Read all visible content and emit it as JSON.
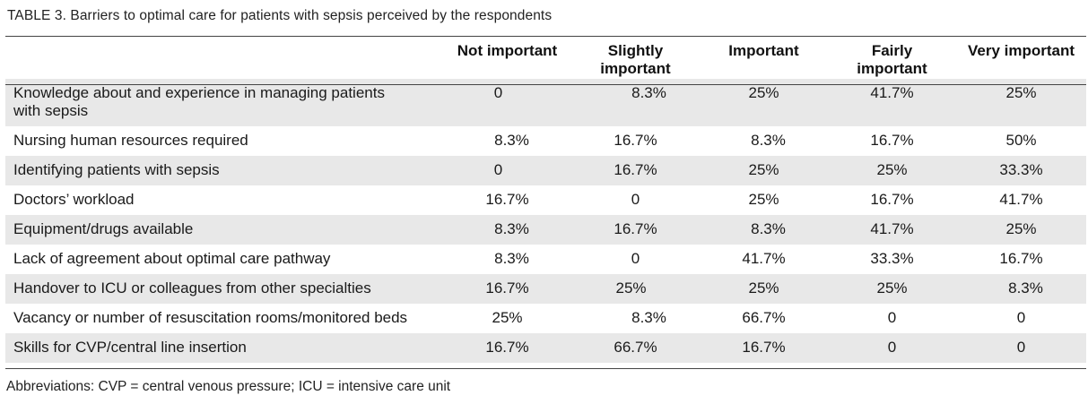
{
  "caption": "TABLE 3.  Barriers to optimal care for patients with sepsis perceived by the respondents",
  "headers": {
    "col1": "Not important",
    "col2_line1": "Slightly",
    "col2_line2": "important",
    "col3": "Important",
    "col4_line1": "Fairly",
    "col4_line2": "important",
    "col5": "Very important"
  },
  "rows": [
    {
      "label_line1": "Knowledge about and experience in managing patients",
      "label_line2": "with sepsis",
      "values": [
        "0",
        "8.3%",
        "25%",
        "41.7%",
        "25%"
      ]
    },
    {
      "label": "Nursing human resources required",
      "values": [
        "8.3%",
        "16.7%",
        "8.3%",
        "16.7%",
        "50%"
      ]
    },
    {
      "label": "Identifying patients with sepsis",
      "values": [
        "0",
        "16.7%",
        "25%",
        "25%",
        "33.3%"
      ]
    },
    {
      "label": "Doctors’ workload",
      "values": [
        "16.7%",
        "0",
        "25%",
        "16.7%",
        "41.7%"
      ]
    },
    {
      "label": "Equipment/drugs available",
      "values": [
        "8.3%",
        "16.7%",
        "8.3%",
        "41.7%",
        "25%"
      ]
    },
    {
      "label": "Lack of agreement about optimal care pathway",
      "values": [
        "8.3%",
        "0",
        "41.7%",
        "33.3%",
        "16.7%"
      ]
    },
    {
      "label": "Handover to ICU or colleagues from other specialties",
      "values": [
        "16.7%",
        "25%",
        "25%",
        "25%",
        "8.3%"
      ]
    },
    {
      "label": "Vacancy or number of resuscitation rooms/monitored beds",
      "values": [
        "25%",
        "8.3%",
        "66.7%",
        "0",
        "0"
      ]
    },
    {
      "label": "Skills for CVP/central line insertion",
      "values": [
        "16.7%",
        "66.7%",
        "16.7%",
        "0",
        "0"
      ]
    }
  ],
  "footnote": "Abbreviations:  CVP = central venous pressure; ICU = intensive care unit"
}
